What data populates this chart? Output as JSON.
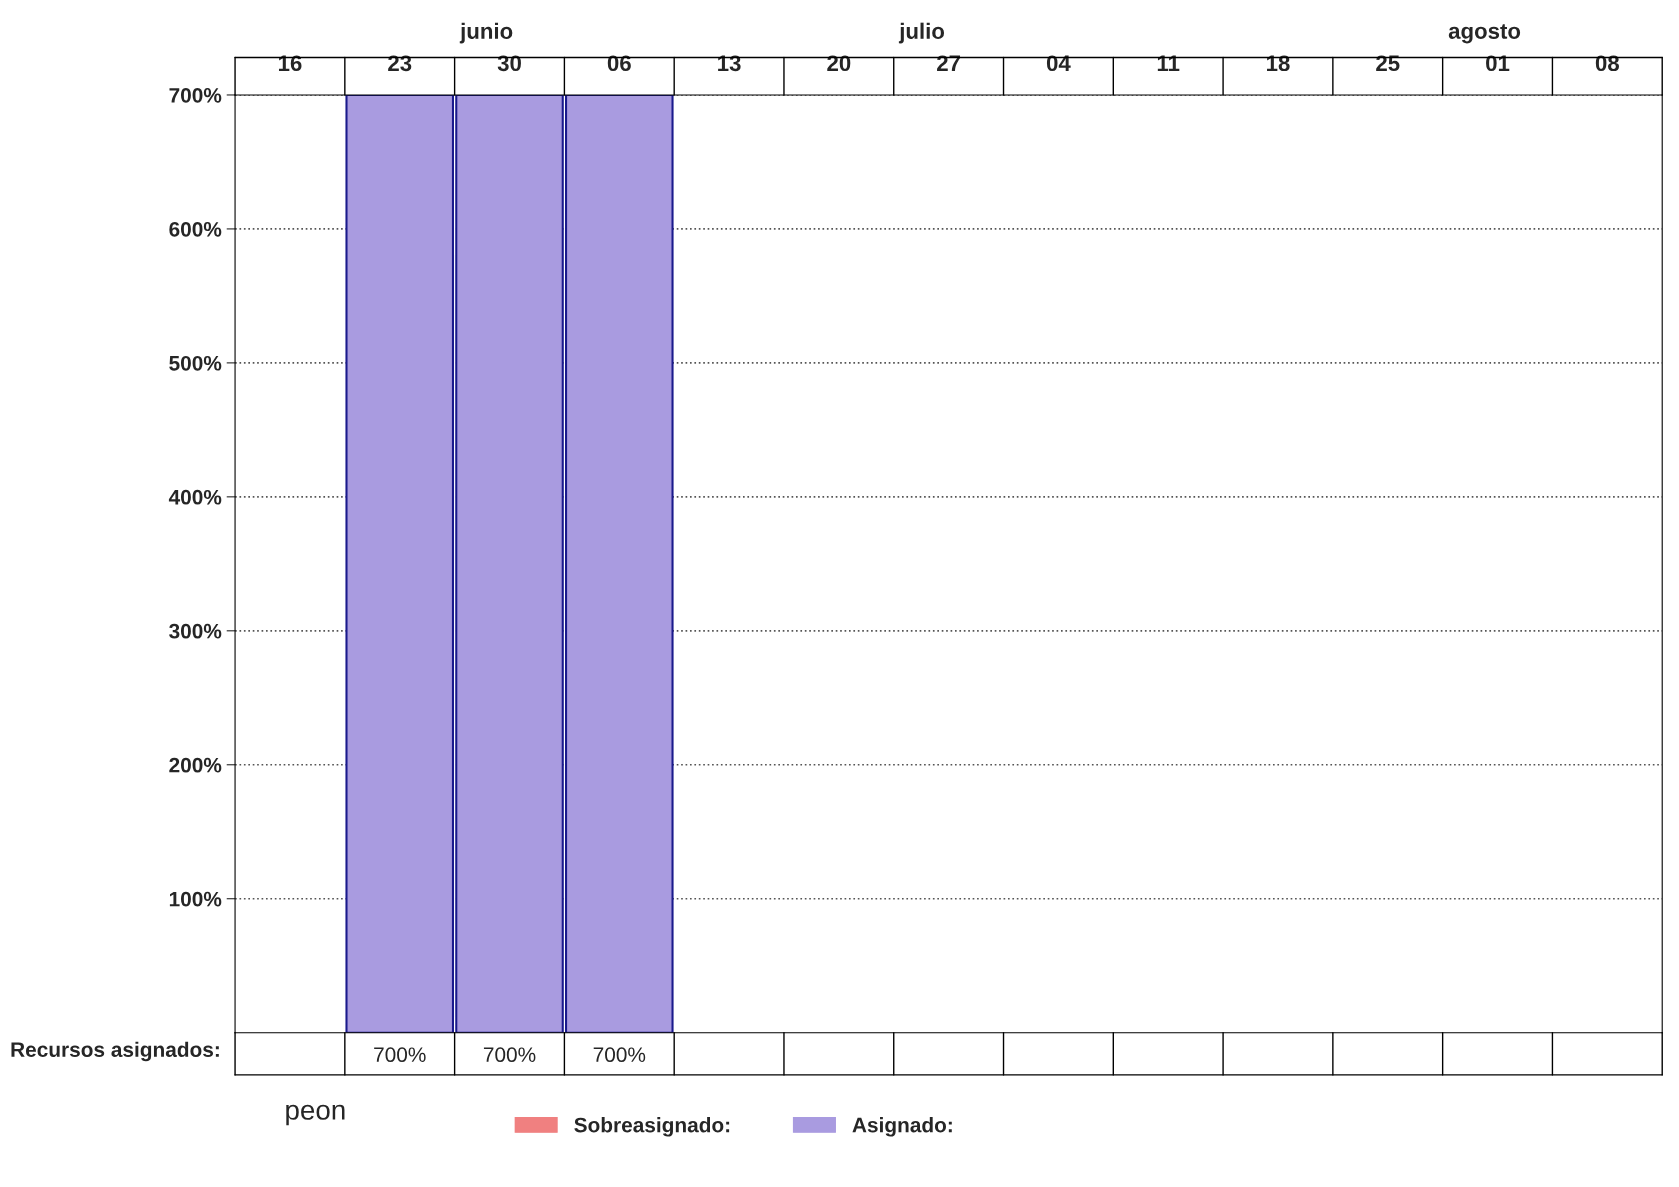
{
  "chart_data": {
    "type": "bar",
    "categories": [
      "16",
      "23",
      "30",
      "06",
      "13",
      "20",
      "27",
      "04",
      "11",
      "18",
      "25",
      "01",
      "08"
    ],
    "series": [
      {
        "name": "Sobreasignado:",
        "color": "#f08080",
        "values": [
          null,
          null,
          null,
          null,
          null,
          null,
          null,
          null,
          null,
          null,
          null,
          null,
          null
        ]
      },
      {
        "name": "Asignado:",
        "color": "#a99be0",
        "values": [
          null,
          700,
          700,
          700,
          null,
          null,
          null,
          null,
          null,
          null,
          null,
          null,
          null
        ],
        "value_labels": [
          null,
          "700%",
          "700%",
          "700%",
          null,
          null,
          null,
          null,
          null,
          null,
          null,
          null,
          null
        ]
      }
    ],
    "ylim": [
      0,
      700
    ],
    "yticks": [
      {
        "value": 100,
        "label": "100%"
      },
      {
        "value": 200,
        "label": "200%"
      },
      {
        "value": 300,
        "label": "300%"
      },
      {
        "value": 400,
        "label": "400%"
      },
      {
        "value": 500,
        "label": "500%"
      },
      {
        "value": 600,
        "label": "600%"
      },
      {
        "value": 700,
        "label": "700%"
      }
    ],
    "grid": "y",
    "legend": "bottom",
    "annotations": [
      "Recursos asignados:",
      "peon",
      "junio",
      "julio",
      "agosto"
    ]
  }
}
